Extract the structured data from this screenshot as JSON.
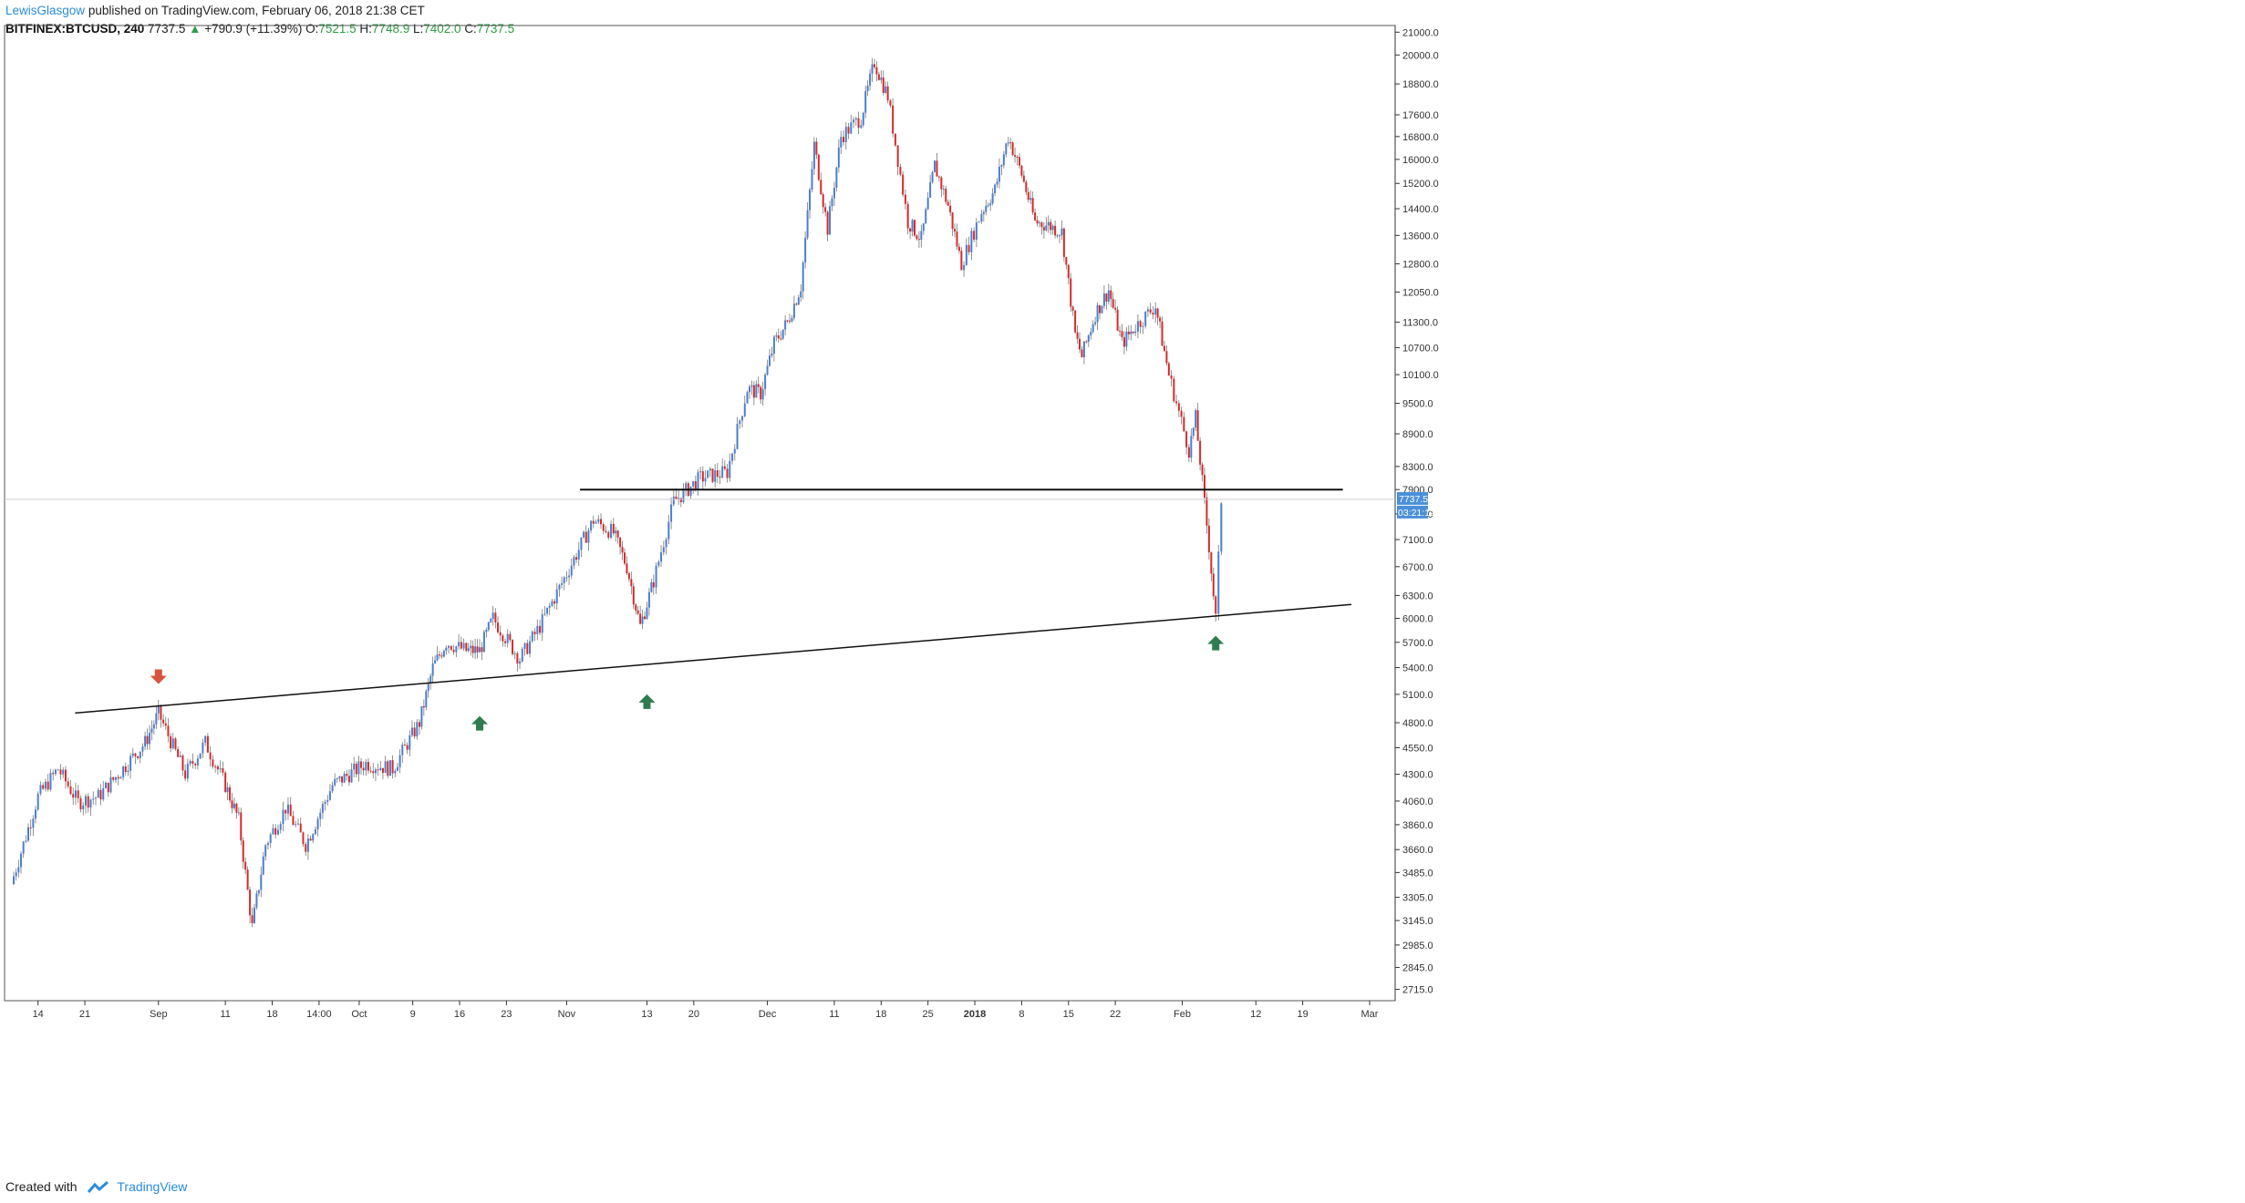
{
  "header": {
    "author": "LewisGlasgow",
    "published_text": "published on TradingView.com, February 06, 2018 21:38 CET",
    "symbol": "BITFINEX:BTCUSD, 240",
    "last": "7737.5",
    "change": "+790.9 (+11.39%)",
    "o_label": "O:",
    "o_value": "7521.5",
    "h_label": "H:",
    "h_value": "7748.9",
    "l_label": "L:",
    "l_value": "7402.0",
    "c_label": "C:",
    "c_value": "7737.5"
  },
  "footer": {
    "created_with": "Created with",
    "brand": "TradingView"
  },
  "colors": {
    "up": "#4a7fd0",
    "down": "#d62a2a",
    "grid_border": "#555555",
    "badge": "#4a90d9",
    "arrow_up": "#2e7d4f",
    "arrow_down": "#d9533b"
  },
  "chart_data": {
    "type": "candlestick",
    "symbol": "BITFINEX:BTCUSD",
    "interval": "240",
    "y_axis_ticks": [
      "21000.0",
      "20000.0",
      "18800.0",
      "17600.0",
      "16800.0",
      "16000.0",
      "15200.0",
      "14400.0",
      "13600.0",
      "12800.0",
      "12050.0",
      "11300.0",
      "10700.0",
      "10100.0",
      "9500.0",
      "8900.0",
      "8300.0",
      "7900.0",
      "7500.0",
      "7100.0",
      "6700.0",
      "6300.0",
      "6000.0",
      "5700.0",
      "5400.0",
      "5100.0",
      "4800.0",
      "4550.0",
      "4300.0",
      "4060.0",
      "3860.0",
      "3660.0",
      "3485.0",
      "3305.0",
      "3145.0",
      "2985.0",
      "2845.0",
      "2715.0"
    ],
    "x_axis_labels": [
      "14",
      "21",
      "Sep",
      "11",
      "18",
      "14:00",
      "Oct",
      "9",
      "16",
      "23",
      "Nov",
      "13",
      "20",
      "Dec",
      "11",
      "18",
      "25",
      "2018",
      "8",
      "15",
      "22",
      "Feb",
      "12",
      "19",
      "Mar"
    ],
    "y_scale": "log",
    "y_range": [
      2650,
      21300
    ],
    "price_path": [
      {
        "date": "2017-08-10",
        "price": 3400
      },
      {
        "date": "2017-08-14",
        "price": 4100
      },
      {
        "date": "2017-08-17",
        "price": 4350
      },
      {
        "date": "2017-08-20",
        "price": 4050
      },
      {
        "date": "2017-08-23",
        "price": 4100
      },
      {
        "date": "2017-08-26",
        "price": 4300
      },
      {
        "date": "2017-08-30",
        "price": 4600
      },
      {
        "date": "2017-09-01",
        "price": 4900
      },
      {
        "date": "2017-09-05",
        "price": 4300
      },
      {
        "date": "2017-09-08",
        "price": 4600
      },
      {
        "date": "2017-09-11",
        "price": 4200
      },
      {
        "date": "2017-09-13",
        "price": 3900
      },
      {
        "date": "2017-09-15",
        "price": 3100
      },
      {
        "date": "2017-09-17",
        "price": 3700
      },
      {
        "date": "2017-09-20",
        "price": 4000
      },
      {
        "date": "2017-09-23",
        "price": 3700
      },
      {
        "date": "2017-09-27",
        "price": 4200
      },
      {
        "date": "2017-10-02",
        "price": 4400
      },
      {
        "date": "2017-10-06",
        "price": 4350
      },
      {
        "date": "2017-10-10",
        "price": 4800
      },
      {
        "date": "2017-10-12",
        "price": 5400
      },
      {
        "date": "2017-10-14",
        "price": 5700
      },
      {
        "date": "2017-10-17",
        "price": 5600
      },
      {
        "date": "2017-10-19",
        "price": 5600
      },
      {
        "date": "2017-10-21",
        "price": 6000
      },
      {
        "date": "2017-10-25",
        "price": 5500
      },
      {
        "date": "2017-10-28",
        "price": 5900
      },
      {
        "date": "2017-11-01",
        "price": 6600
      },
      {
        "date": "2017-11-05",
        "price": 7400
      },
      {
        "date": "2017-11-08",
        "price": 7200
      },
      {
        "date": "2017-11-10",
        "price": 6700
      },
      {
        "date": "2017-11-12",
        "price": 5900
      },
      {
        "date": "2017-11-14",
        "price": 6500
      },
      {
        "date": "2017-11-17",
        "price": 7700
      },
      {
        "date": "2017-11-21",
        "price": 8100
      },
      {
        "date": "2017-11-25",
        "price": 8200
      },
      {
        "date": "2017-11-28",
        "price": 9800
      },
      {
        "date": "2017-11-30",
        "price": 9700
      },
      {
        "date": "2017-12-02",
        "price": 10800
      },
      {
        "date": "2017-12-04",
        "price": 11300
      },
      {
        "date": "2017-12-06",
        "price": 12200
      },
      {
        "date": "2017-12-08",
        "price": 16500
      },
      {
        "date": "2017-12-10",
        "price": 13800
      },
      {
        "date": "2017-12-12",
        "price": 16800
      },
      {
        "date": "2017-12-15",
        "price": 17500
      },
      {
        "date": "2017-12-17",
        "price": 19700
      },
      {
        "date": "2017-12-19",
        "price": 18300
      },
      {
        "date": "2017-12-22",
        "price": 14000
      },
      {
        "date": "2017-12-24",
        "price": 13500
      },
      {
        "date": "2017-12-26",
        "price": 15800
      },
      {
        "date": "2017-12-28",
        "price": 14500
      },
      {
        "date": "2017-12-30",
        "price": 12800
      },
      {
        "date": "2018-01-02",
        "price": 14300
      },
      {
        "date": "2018-01-04",
        "price": 15000
      },
      {
        "date": "2018-01-06",
        "price": 16800
      },
      {
        "date": "2018-01-08",
        "price": 15500
      },
      {
        "date": "2018-01-10",
        "price": 14000
      },
      {
        "date": "2018-01-12",
        "price": 13900
      },
      {
        "date": "2018-01-14",
        "price": 13700
      },
      {
        "date": "2018-01-16",
        "price": 11000
      },
      {
        "date": "2018-01-17",
        "price": 10500
      },
      {
        "date": "2018-01-19",
        "price": 11500
      },
      {
        "date": "2018-01-21",
        "price": 12100
      },
      {
        "date": "2018-01-23",
        "price": 10800
      },
      {
        "date": "2018-01-25",
        "price": 11200
      },
      {
        "date": "2018-01-28",
        "price": 11700
      },
      {
        "date": "2018-01-30",
        "price": 10100
      },
      {
        "date": "2018-02-02",
        "price": 8600
      },
      {
        "date": "2018-02-03",
        "price": 9200
      },
      {
        "date": "2018-02-05",
        "price": 7000
      },
      {
        "date": "2018-02-06",
        "price": 6000
      },
      {
        "date": "2018-02-06 20:00",
        "price": 7737.5
      }
    ],
    "annotations": {
      "horizontal_level": 7900,
      "trendline": [
        {
          "date": "2017-08-25",
          "price": 4900
        },
        {
          "date": "2018-03-01",
          "price": 6180
        }
      ],
      "arrows_up": [
        {
          "date": "2017-10-19",
          "price": 4870
        },
        {
          "date": "2017-11-13",
          "price": 5100
        },
        {
          "date": "2018-02-06",
          "price": 5780
        }
      ],
      "arrows_down": [
        {
          "date": "2017-09-01",
          "price": 5380
        }
      ]
    },
    "last_price_label": "7737.5",
    "countdown_label": "03:21:12"
  }
}
